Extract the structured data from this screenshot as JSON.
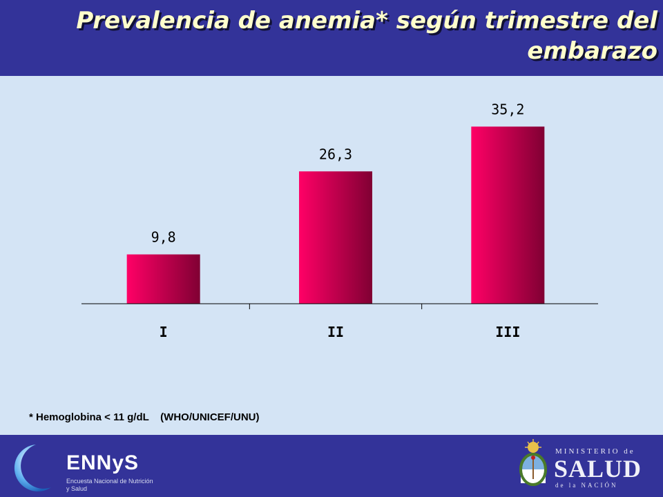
{
  "header": {
    "title": "Prevalencia de anemia* según trimestre del embarazo"
  },
  "footnote": "* Hemoglobina < 11 g/dL    (WHO/UNICEF/UNU)",
  "footer": {
    "ennys_name": "ENNyS",
    "ennys_subtitle": "Encuesta Nacional de Nutrición y Salud",
    "ministerio_top": "MINISTERIO de",
    "ministerio_main": "SALUD",
    "ministerio_bottom": "de la NACIÓN"
  },
  "colors": {
    "header_bg": "#333399",
    "title_text": "#ffffcc",
    "content_bg": "#d4e4f5",
    "bar_light": "#ff0066",
    "bar_dark": "#800033"
  },
  "chart_data": {
    "type": "bar",
    "categories": [
      "I",
      "II",
      "III"
    ],
    "values": [
      9.8,
      26.3,
      35.2
    ],
    "data_labels": [
      "9,8",
      "26,3",
      "35,2"
    ],
    "title": "",
    "xlabel": "",
    "ylabel": "",
    "ylim": [
      0,
      40
    ],
    "grid": false,
    "legend": "none"
  }
}
